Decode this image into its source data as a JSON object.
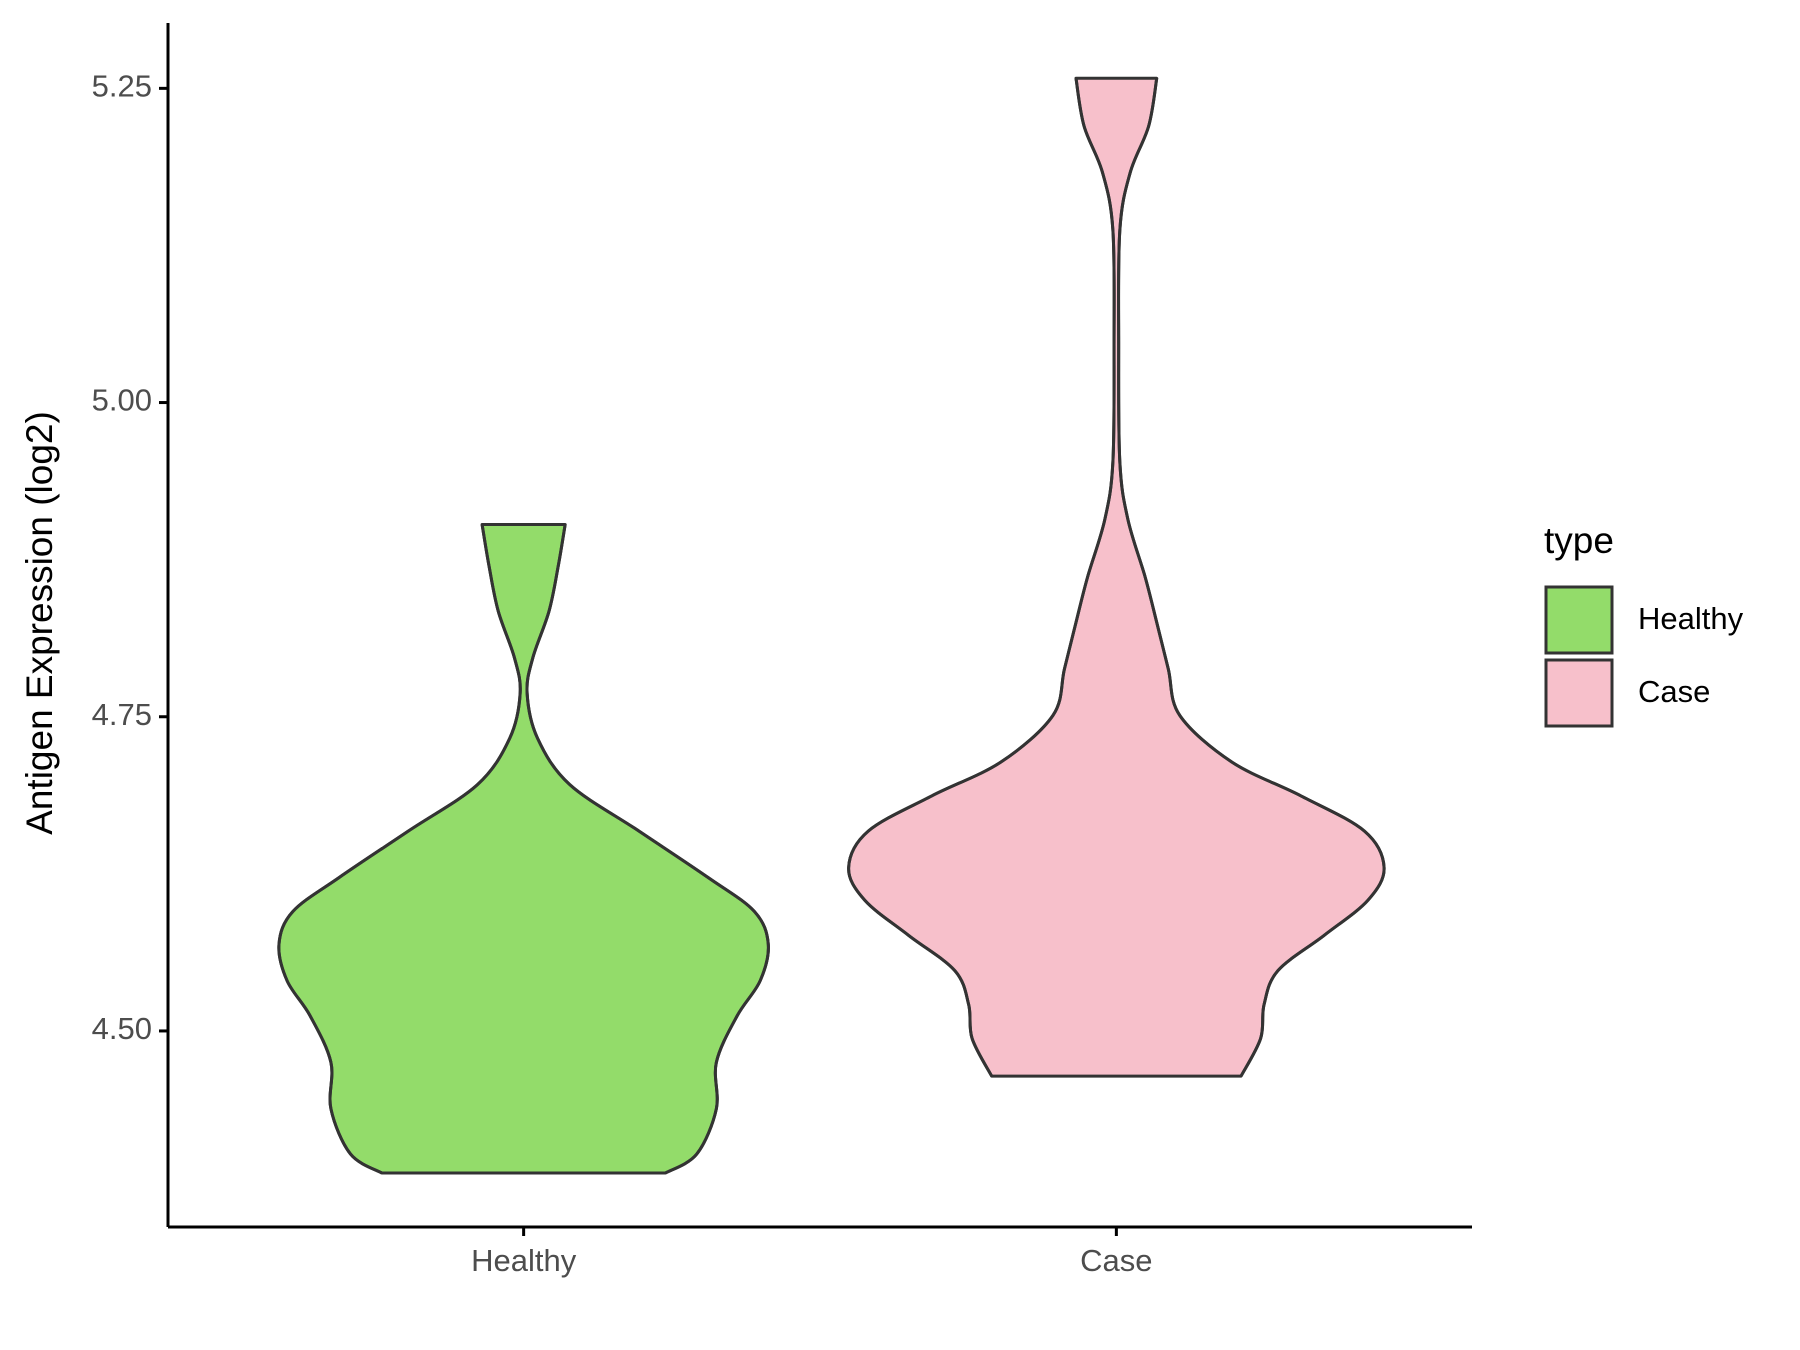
{
  "chart_data": {
    "type": "violin",
    "y_label": "Antigen Expression (log2)",
    "categories": [
      "Healthy",
      "Case"
    ],
    "ylim": [
      4.344,
      5.302
    ],
    "yticks": [
      {
        "value": 4.5,
        "label": "4.50"
      },
      4.75,
      {
        "value": 5,
        "label": "5.00"
      },
      5.25
    ],
    "legend_title": "type",
    "legend": "right",
    "series": [
      {
        "name": "Healthy",
        "color": "#93dc6a",
        "y": [
          4.387,
          4.402,
          4.438,
          4.475,
          4.512,
          4.54,
          4.569,
          4.595,
          4.622,
          4.659,
          4.696,
          4.733,
          4.769,
          4.797,
          4.834,
          4.87,
          4.903
        ],
        "density": [
          123,
          150,
          167,
          167,
          185,
          205,
          212,
          200,
          160,
          100,
          40,
          12,
          3,
          8,
          22,
          30,
          36
        ]
      },
      {
        "name": "Case",
        "color": "#f7c0cb",
        "y": [
          4.464,
          4.494,
          4.521,
          4.548,
          4.576,
          4.604,
          4.63,
          4.659,
          4.687,
          4.714,
          4.751,
          4.788,
          4.825,
          4.861,
          4.907,
          4.953,
          5.045,
          5.137,
          5.183,
          5.22,
          5.258
        ],
        "density": [
          108,
          125,
          128,
          140,
          180,
          218,
          232,
          215,
          160,
          100,
          55,
          45,
          35,
          25,
          10,
          3,
          2,
          3,
          12,
          28,
          35
        ]
      }
    ]
  }
}
